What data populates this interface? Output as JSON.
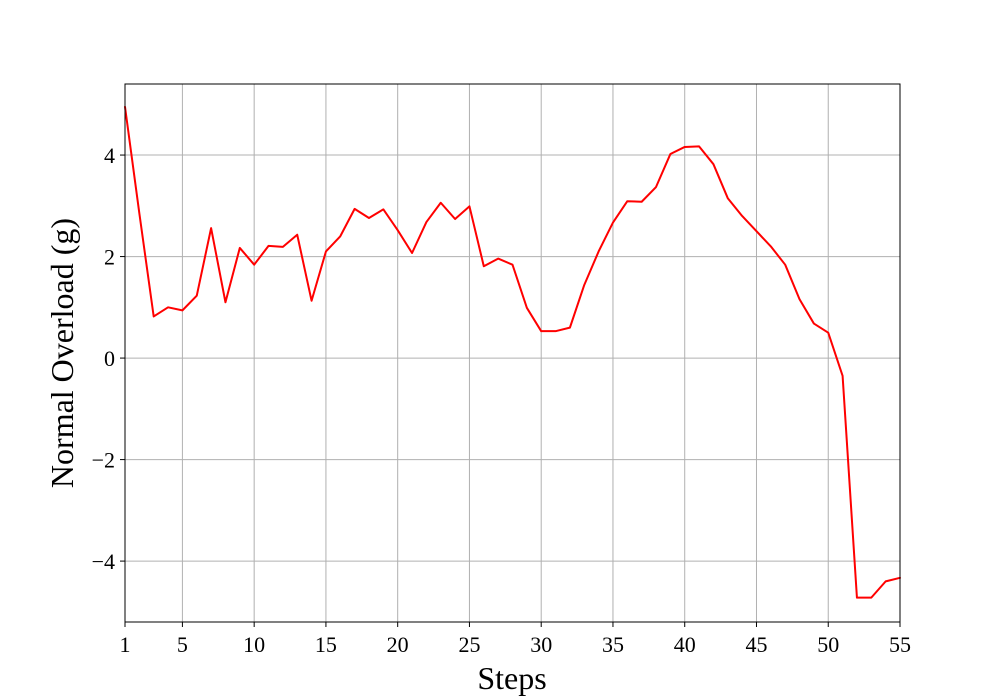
{
  "chart_data": {
    "type": "line",
    "title": "",
    "xlabel": "Steps",
    "ylabel": "Normal Overload (g)",
    "xlim": [
      1,
      55
    ],
    "ylim": [
      -5.2,
      5.4
    ],
    "xticks": [
      1,
      5,
      10,
      15,
      20,
      25,
      30,
      35,
      40,
      45,
      50,
      55
    ],
    "xtick_labels": [
      "1",
      "5",
      "10",
      "15",
      "20",
      "25",
      "30",
      "35",
      "40",
      "45",
      "50",
      "55"
    ],
    "yticks": [
      -4,
      -2,
      0,
      2,
      4
    ],
    "ytick_labels": [
      "−4",
      "−2",
      "0",
      "2",
      "4"
    ],
    "grid": true,
    "series": [
      {
        "color": "#ff0000",
        "x": [
          1,
          2,
          3,
          4,
          5,
          6,
          7,
          8,
          9,
          10,
          11,
          12,
          13,
          14,
          15,
          16,
          17,
          18,
          19,
          20,
          21,
          22,
          23,
          24,
          25,
          26,
          27,
          28,
          29,
          30,
          31,
          32,
          33,
          34,
          35,
          36,
          37,
          38,
          39,
          40,
          41,
          42,
          43,
          44,
          45,
          46,
          47,
          48,
          49,
          50,
          51,
          52,
          53,
          54,
          55
        ],
        "values": [
          4.95,
          2.85,
          0.82,
          1.0,
          0.94,
          1.23,
          2.56,
          1.1,
          2.17,
          1.84,
          2.21,
          2.19,
          2.43,
          1.13,
          2.1,
          2.4,
          2.94,
          2.76,
          2.93,
          2.52,
          2.07,
          2.68,
          3.06,
          2.74,
          2.99,
          1.81,
          1.96,
          1.84,
          0.99,
          0.53,
          0.53,
          0.6,
          1.44,
          2.1,
          2.67,
          3.09,
          3.08,
          3.37,
          4.02,
          4.16,
          4.17,
          3.82,
          3.15,
          2.8,
          2.5,
          2.2,
          1.84,
          1.16,
          0.68,
          0.5,
          -0.35,
          -4.72,
          -4.72,
          -4.4,
          -4.33
        ]
      }
    ]
  }
}
